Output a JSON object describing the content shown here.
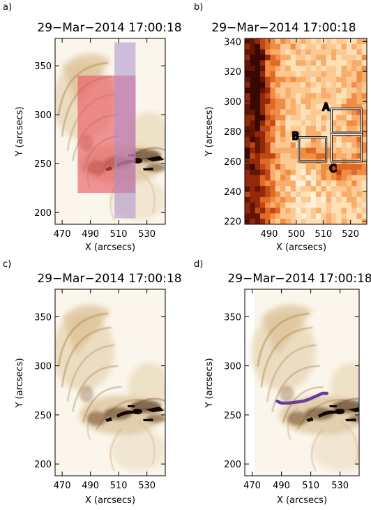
{
  "figure": {
    "panels": [
      {
        "id": "a",
        "label": "a)",
        "title": "29−Mar−2014  17:00:18",
        "xlabel": "X (arcsecs)",
        "ylabel": "Y (arcsecs)",
        "xlim": [
          465,
          543
        ],
        "ylim": [
          188,
          378
        ],
        "xticks": [
          470,
          490,
          510,
          530
        ],
        "yticks": [
          200,
          250,
          300,
          350
        ],
        "image": "sunspot-loops-inverted",
        "overlays": [
          {
            "kind": "rect",
            "color": "#e8555f",
            "x": [
              481,
              522
            ],
            "y": [
              220,
              340
            ]
          },
          {
            "kind": "rect",
            "color": "#a98fd0",
            "x": [
              507,
              522
            ],
            "y": [
              194,
              374
            ]
          }
        ]
      },
      {
        "id": "b",
        "label": "b)",
        "title": "29−Mar−2014  17:00:18",
        "xlabel": "X (arcsecs)",
        "ylabel": "Y (arcsecs)",
        "xlim": [
          481,
          526
        ],
        "ylim": [
          218,
          342
        ],
        "xticks": [
          490,
          500,
          510,
          520
        ],
        "yticks": [
          220,
          240,
          260,
          280,
          300,
          320,
          340
        ],
        "image": "intensity-map-orange",
        "boxes": [
          {
            "label": "A",
            "x": [
              513,
              524
            ],
            "y": [
              279,
              295
            ]
          },
          {
            "label": "B",
            "x": [
              501,
              511
            ],
            "y": [
              260,
              276
            ]
          },
          {
            "label": "C",
            "x": [
              513,
              524
            ],
            "y": [
              260,
              278
            ]
          }
        ]
      },
      {
        "id": "c",
        "label": "c)",
        "title": "29−Mar−2014  17:00:18",
        "xlabel": "X (arcsecs)",
        "ylabel": "Y (arcsecs)",
        "xlim": [
          465,
          543
        ],
        "ylim": [
          188,
          378
        ],
        "xticks": [
          470,
          490,
          510,
          530
        ],
        "yticks": [
          200,
          250,
          300,
          350
        ],
        "image": "sunspot-loops-inverted"
      },
      {
        "id": "d",
        "label": "d)",
        "title": "29−Mar−2014  17:00:18",
        "xlabel": "X (arcsecs)",
        "ylabel": "Y (arcsecs)",
        "xlim": [
          465,
          543
        ],
        "ylim": [
          188,
          378
        ],
        "xticks": [
          470,
          490,
          510,
          530
        ],
        "yticks": [
          200,
          250,
          300,
          350
        ],
        "image": "sunspot-loops-inverted",
        "trace": {
          "color": "#6b3d9a",
          "x": [
            487,
            490,
            495,
            500,
            505,
            509,
            512,
            515,
            518,
            521
          ],
          "y": [
            264,
            262,
            262,
            263,
            264,
            266,
            268,
            270,
            272,
            272
          ]
        }
      }
    ]
  }
}
